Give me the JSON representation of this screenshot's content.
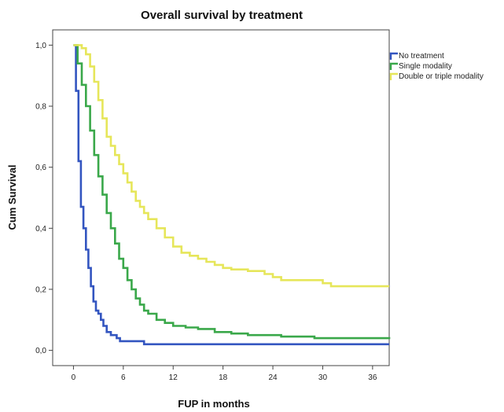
{
  "chart_data": {
    "type": "line",
    "step": true,
    "title": "Overall survival by treatment",
    "xlabel": "FUP in months",
    "ylabel": "Cum Survival",
    "xlim": [
      -2.5,
      38
    ],
    "ylim": [
      -0.05,
      1.05
    ],
    "xticks": [
      0,
      6,
      12,
      18,
      24,
      30,
      36
    ],
    "yticks": [
      0.0,
      0.2,
      0.4,
      0.6,
      0.8,
      1.0
    ],
    "ytick_labels": [
      "0,0",
      "0,2",
      "0,4",
      "0,6",
      "0,8",
      "1,0"
    ],
    "grid": false,
    "legend_position": "top-right",
    "series": [
      {
        "name": "No treatment",
        "color": "#3355c0",
        "points": [
          [
            0,
            1.0
          ],
          [
            0.3,
            0.85
          ],
          [
            0.6,
            0.62
          ],
          [
            0.9,
            0.47
          ],
          [
            1.2,
            0.4
          ],
          [
            1.5,
            0.33
          ],
          [
            1.8,
            0.27
          ],
          [
            2.1,
            0.21
          ],
          [
            2.4,
            0.16
          ],
          [
            2.7,
            0.13
          ],
          [
            3.0,
            0.12
          ],
          [
            3.3,
            0.1
          ],
          [
            3.6,
            0.08
          ],
          [
            4.0,
            0.06
          ],
          [
            4.5,
            0.05
          ],
          [
            5.2,
            0.04
          ],
          [
            5.6,
            0.03
          ],
          [
            7.0,
            0.03
          ],
          [
            8.5,
            0.02
          ],
          [
            31.0,
            0.02
          ],
          [
            38.0,
            0.02
          ]
        ]
      },
      {
        "name": "Single modality",
        "color": "#3aa84a",
        "points": [
          [
            0,
            1.0
          ],
          [
            0.5,
            0.94
          ],
          [
            1.0,
            0.87
          ],
          [
            1.5,
            0.8
          ],
          [
            2.0,
            0.72
          ],
          [
            2.5,
            0.64
          ],
          [
            3.0,
            0.57
          ],
          [
            3.5,
            0.51
          ],
          [
            4.0,
            0.45
          ],
          [
            4.5,
            0.4
          ],
          [
            5.0,
            0.35
          ],
          [
            5.5,
            0.3
          ],
          [
            6.0,
            0.27
          ],
          [
            6.5,
            0.23
          ],
          [
            7.0,
            0.2
          ],
          [
            7.5,
            0.17
          ],
          [
            8.0,
            0.15
          ],
          [
            8.5,
            0.13
          ],
          [
            9.0,
            0.12
          ],
          [
            10.0,
            0.1
          ],
          [
            11.0,
            0.09
          ],
          [
            12.0,
            0.08
          ],
          [
            13.5,
            0.075
          ],
          [
            15.0,
            0.07
          ],
          [
            17.0,
            0.06
          ],
          [
            19.0,
            0.055
          ],
          [
            21.0,
            0.05
          ],
          [
            23.0,
            0.05
          ],
          [
            25.0,
            0.045
          ],
          [
            28.0,
            0.045
          ],
          [
            29.0,
            0.04
          ],
          [
            38.0,
            0.037
          ]
        ]
      },
      {
        "name": "Double or triple modality",
        "color": "#e6e65a",
        "points": [
          [
            0,
            1.0
          ],
          [
            0.6,
            1.0
          ],
          [
            1.0,
            0.99
          ],
          [
            1.5,
            0.97
          ],
          [
            2.0,
            0.93
          ],
          [
            2.5,
            0.88
          ],
          [
            3.0,
            0.82
          ],
          [
            3.5,
            0.76
          ],
          [
            4.0,
            0.7
          ],
          [
            4.5,
            0.67
          ],
          [
            5.0,
            0.64
          ],
          [
            5.5,
            0.61
          ],
          [
            6.0,
            0.58
          ],
          [
            6.5,
            0.55
          ],
          [
            7.0,
            0.52
          ],
          [
            7.5,
            0.49
          ],
          [
            8.0,
            0.47
          ],
          [
            8.5,
            0.45
          ],
          [
            9.0,
            0.43
          ],
          [
            10.0,
            0.4
          ],
          [
            11.0,
            0.37
          ],
          [
            12.0,
            0.34
          ],
          [
            13.0,
            0.32
          ],
          [
            14.0,
            0.31
          ],
          [
            15.0,
            0.3
          ],
          [
            16.0,
            0.29
          ],
          [
            17.0,
            0.28
          ],
          [
            18.0,
            0.27
          ],
          [
            19.0,
            0.265
          ],
          [
            21.0,
            0.26
          ],
          [
            23.0,
            0.25
          ],
          [
            24.0,
            0.24
          ],
          [
            25.0,
            0.23
          ],
          [
            30.0,
            0.22
          ],
          [
            31.0,
            0.21
          ],
          [
            38.0,
            0.21
          ]
        ]
      }
    ]
  }
}
